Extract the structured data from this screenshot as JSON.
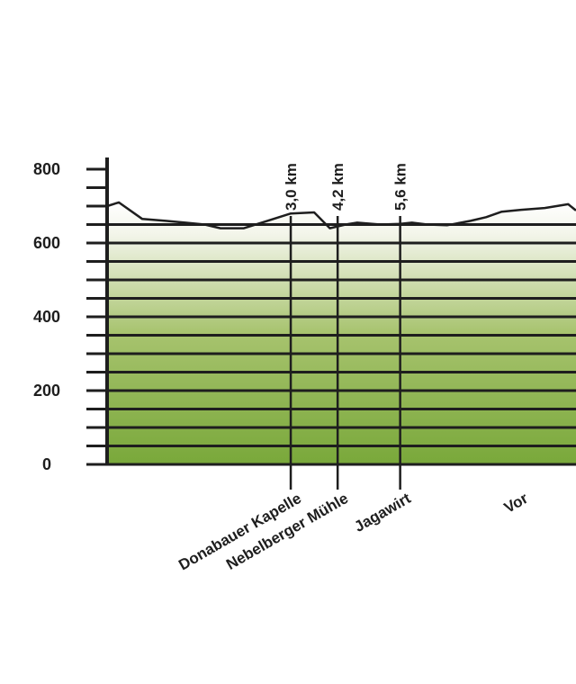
{
  "chart_data": {
    "type": "area",
    "title": "",
    "xlabel": "",
    "ylabel": "",
    "ylim": [
      0,
      800
    ],
    "xlim": [
      0,
      12
    ],
    "grid": true,
    "y_ticks": [
      0,
      200,
      400,
      600,
      800
    ],
    "y_minor_step": 50,
    "colors": {
      "fill_top": "#ffffff",
      "fill_bottom": "#79a83a",
      "line": "#1e1e1e",
      "grid": "#1e1e1e"
    },
    "profile": {
      "x": [
        0,
        0.3,
        0.9,
        1.5,
        2.0,
        2.5,
        2.9,
        3.5,
        4.1,
        4.7,
        5.3,
        5.7,
        6.1,
        6.4,
        7.0,
        7.5,
        7.8,
        8.2,
        8.7,
        9.3,
        9.7,
        10.1,
        10.6,
        11.2,
        11.8,
        12.0
      ],
      "y": [
        700,
        710,
        665,
        660,
        655,
        650,
        640,
        640,
        660,
        680,
        683,
        640,
        650,
        655,
        650,
        652,
        655,
        650,
        648,
        660,
        670,
        685,
        690,
        695,
        705,
        688
      ]
    },
    "markers": [
      {
        "x": 4.7,
        "distance_label": "3,0 km",
        "place": "Donabauer Kapelle"
      },
      {
        "x": 5.9,
        "distance_label": "4,2 km",
        "place": "Nebelberger Mühle"
      },
      {
        "x": 7.5,
        "distance_label": "5,6 km",
        "place": "Jagawirt"
      },
      {
        "x": 10.5,
        "distance_label": "",
        "place": "Vor"
      }
    ]
  }
}
